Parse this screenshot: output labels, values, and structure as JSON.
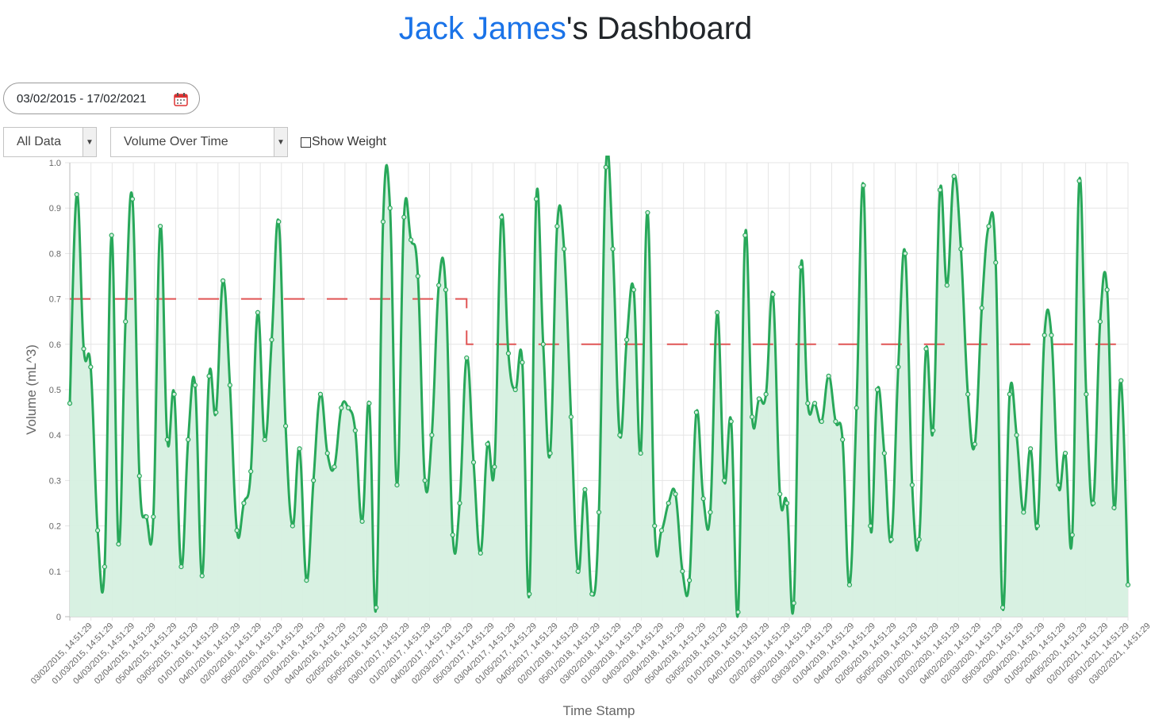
{
  "header": {
    "user_name": "Jack James",
    "title_suffix": "'s Dashboard"
  },
  "controls": {
    "date_range": "03/02/2015 - 17/02/2021",
    "data_filter": "All Data",
    "metric": "Volume Over Time",
    "show_weight_label": "Show Weight",
    "show_weight_checked": false
  },
  "colors": {
    "accent": "#1a73e8",
    "line": "#28a85a",
    "fill": "#d6f0e0",
    "threshold": "#e05555"
  },
  "chart_data": {
    "type": "line",
    "xlabel": "Time Stamp",
    "ylabel": "Volume (mL^3)",
    "ylim": [
      0,
      1.0
    ],
    "yticks": [
      "0",
      "0.1",
      "0.2",
      "0.3",
      "0.4",
      "0.5",
      "0.6",
      "0.7",
      "0.8",
      "0.9",
      "1.0"
    ],
    "grid": true,
    "x_tick_labels": [
      "03/02/2015, 14:51:29",
      "01/03/2015, 14:51:29",
      "04/03/2015, 14:51:29",
      "02/04/2015, 14:51:29",
      "05/04/2015, 14:51:29",
      "03/05/2015, 14:51:29",
      "01/01/2016, 14:51:29",
      "04/01/2016, 14:51:29",
      "02/02/2016, 14:51:29",
      "05/02/2016, 14:51:29",
      "03/03/2016, 14:51:29",
      "01/04/2016, 14:51:29",
      "04/04/2016, 14:51:29",
      "02/05/2016, 14:51:29",
      "05/05/2016, 14:51:29",
      "03/01/2017, 14:51:29",
      "01/02/2017, 14:51:29",
      "04/02/2017, 14:51:29",
      "02/03/2017, 14:51:29",
      "05/03/2017, 14:51:29",
      "03/04/2017, 14:51:29",
      "01/05/2017, 14:51:29",
      "04/05/2017, 14:51:29",
      "02/01/2018, 14:51:29",
      "05/01/2018, 14:51:29",
      "03/02/2018, 14:51:29",
      "01/03/2018, 14:51:29",
      "04/03/2018, 14:51:29",
      "02/04/2018, 14:51:29",
      "05/04/2018, 14:51:29",
      "03/05/2018, 14:51:29",
      "01/01/2019, 14:51:29",
      "04/01/2019, 14:51:29",
      "02/02/2019, 14:51:29",
      "05/02/2019, 14:51:29",
      "03/03/2019, 14:51:29",
      "01/04/2019, 14:51:29",
      "04/04/2019, 14:51:29",
      "02/05/2019, 14:51:29",
      "05/05/2019, 14:51:29",
      "03/01/2020, 14:51:29",
      "01/02/2020, 14:51:29",
      "04/02/2020, 14:51:29",
      "02/03/2020, 14:51:29",
      "05/03/2020, 14:51:29",
      "03/04/2020, 14:51:29",
      "01/05/2020, 14:51:29",
      "04/05/2020, 14:51:29",
      "02/01/2021, 14:51:29",
      "05/01/2021, 14:51:29",
      "03/02/2021, 14:51:29"
    ],
    "series": [
      {
        "values": [
          0.47,
          0.93,
          0.59,
          0.55,
          0.19,
          0.11,
          0.84,
          0.16,
          0.65,
          0.92,
          0.31,
          0.22,
          0.22,
          0.86,
          0.39,
          0.49,
          0.11,
          0.39,
          0.51,
          0.09,
          0.53,
          0.45,
          0.74,
          0.51,
          0.19,
          0.25,
          0.32,
          0.67,
          0.39,
          0.61,
          0.87,
          0.42,
          0.2,
          0.37,
          0.08,
          0.3,
          0.49,
          0.36,
          0.33,
          0.46,
          0.46,
          0.41,
          0.21,
          0.47,
          0.02,
          0.87,
          0.9,
          0.29,
          0.88,
          0.83,
          0.75,
          0.3,
          0.4,
          0.73,
          0.72,
          0.18,
          0.25,
          0.57,
          0.34,
          0.14,
          0.38,
          0.33,
          0.88,
          0.58,
          0.5,
          0.56,
          0.05,
          0.92,
          0.6,
          0.36,
          0.86,
          0.81,
          0.44,
          0.1,
          0.28,
          0.05,
          0.23,
          0.99,
          0.81,
          0.4,
          0.61,
          0.72,
          0.36,
          0.89,
          0.2,
          0.19,
          0.25,
          0.27,
          0.1,
          0.08,
          0.45,
          0.26,
          0.23,
          0.67,
          0.3,
          0.43,
          0.01,
          0.84,
          0.44,
          0.48,
          0.49,
          0.71,
          0.27,
          0.25,
          0.03,
          0.77,
          0.47,
          0.47,
          0.43,
          0.53,
          0.43,
          0.39,
          0.07,
          0.46,
          0.95,
          0.2,
          0.5,
          0.36,
          0.17,
          0.55,
          0.8,
          0.29,
          0.17,
          0.59,
          0.41,
          0.94,
          0.73,
          0.97,
          0.81,
          0.49,
          0.38,
          0.68,
          0.86,
          0.78,
          0.02,
          0.49,
          0.4,
          0.23,
          0.37,
          0.2,
          0.62,
          0.62,
          0.29,
          0.36,
          0.18,
          0.96,
          0.49,
          0.25,
          0.65,
          0.72,
          0.24,
          0.52,
          0.07
        ]
      },
      {
        "values": [
          0.7,
          0.7,
          0.6,
          0.6
        ],
        "threshold_x": [
          0,
          57,
          57,
          152
        ]
      }
    ]
  }
}
